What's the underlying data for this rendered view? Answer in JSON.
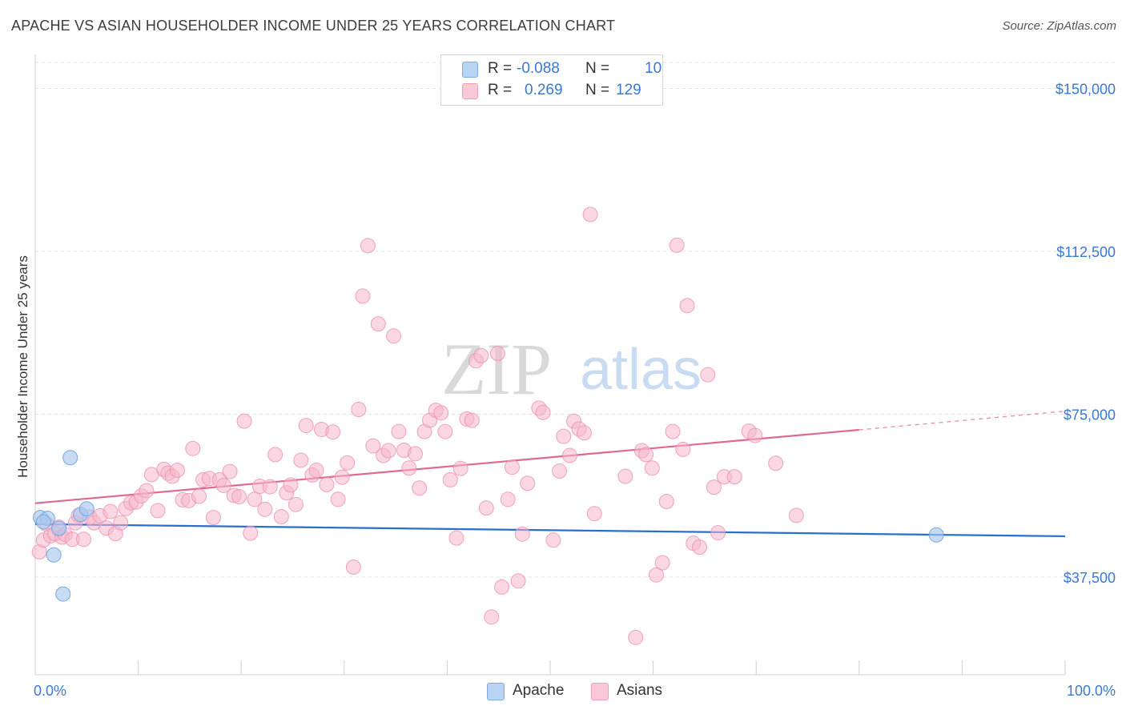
{
  "title": "APACHE VS ASIAN HOUSEHOLDER INCOME UNDER 25 YEARS CORRELATION CHART",
  "source": "Source: ZipAtlas.com",
  "watermark": {
    "zip": "ZIP",
    "atlas": "atlas"
  },
  "legend": {
    "r_label": "R =",
    "n_label": "N =",
    "rows": [
      {
        "name": "Apache",
        "r": "-0.088",
        "n": "10"
      },
      {
        "name": "Asians",
        "r": "0.269",
        "n": "129"
      }
    ]
  },
  "colors": {
    "apache_fill": "#a9c8f0",
    "apache_stroke": "#6f9fdc",
    "apache_line": "#2a6fd0",
    "asian_fill": "#f6b6cb",
    "asian_stroke": "#ec8fb0",
    "asian_line": "#e0698f",
    "tick_text": "#3a78d1",
    "grid": "#e3e3e3"
  },
  "chart_data": {
    "type": "scatter",
    "title": "APACHE VS ASIAN HOUSEHOLDER INCOME UNDER 25 YEARS CORRELATION CHART",
    "xlabel": "",
    "ylabel": "Householder Income Under 25 years",
    "xlim": [
      0,
      100
    ],
    "ylim": [
      15000,
      156000
    ],
    "x_tick_labels": [
      "0.0%",
      "100.0%"
    ],
    "y_ticks": [
      37500,
      75000,
      112500,
      150000
    ],
    "y_tick_labels": [
      "$37,500",
      "$75,000",
      "$112,500",
      "$150,000"
    ],
    "grid": true,
    "legend_position": "top-center",
    "series": [
      {
        "name": "Apache",
        "points": [
          [
            0.5,
            51200
          ],
          [
            1.2,
            51000
          ],
          [
            0.8,
            50200
          ],
          [
            1.8,
            42600
          ],
          [
            2.3,
            48700
          ],
          [
            2.7,
            33600
          ],
          [
            3.4,
            65000
          ],
          [
            4.4,
            51900
          ],
          [
            5.0,
            53200
          ],
          [
            87.5,
            47200
          ]
        ],
        "trend": {
          "x0": 0,
          "y0": 49700,
          "x1": 100,
          "y1": 46900
        }
      },
      {
        "name": "Asians",
        "points": [
          [
            0.4,
            43300
          ],
          [
            0.8,
            46000
          ],
          [
            1.1,
            49700
          ],
          [
            1.5,
            47000
          ],
          [
            1.9,
            47500
          ],
          [
            2.3,
            49000
          ],
          [
            2.6,
            46700
          ],
          [
            2.9,
            47300
          ],
          [
            3.6,
            46200
          ],
          [
            3.9,
            50000
          ],
          [
            4.2,
            51700
          ],
          [
            4.7,
            46200
          ],
          [
            5.3,
            51300
          ],
          [
            5.7,
            50000
          ],
          [
            6.3,
            51600
          ],
          [
            6.9,
            48800
          ],
          [
            7.3,
            52600
          ],
          [
            7.8,
            47500
          ],
          [
            8.3,
            50000
          ],
          [
            8.8,
            53300
          ],
          [
            9.3,
            54600
          ],
          [
            9.8,
            54800
          ],
          [
            10.3,
            56200
          ],
          [
            10.8,
            57400
          ],
          [
            11.3,
            61100
          ],
          [
            11.9,
            52800
          ],
          [
            12.5,
            62300
          ],
          [
            12.9,
            61400
          ],
          [
            13.3,
            60700
          ],
          [
            13.8,
            62100
          ],
          [
            14.3,
            55300
          ],
          [
            14.9,
            55100
          ],
          [
            15.3,
            67100
          ],
          [
            15.9,
            56100
          ],
          [
            16.3,
            59900
          ],
          [
            16.9,
            60200
          ],
          [
            17.3,
            51200
          ],
          [
            17.9,
            59900
          ],
          [
            18.3,
            58600
          ],
          [
            18.9,
            61800
          ],
          [
            19.3,
            56300
          ],
          [
            19.8,
            56000
          ],
          [
            20.3,
            73400
          ],
          [
            20.9,
            47600
          ],
          [
            21.3,
            55400
          ],
          [
            21.8,
            58400
          ],
          [
            22.3,
            53100
          ],
          [
            22.8,
            58300
          ],
          [
            23.3,
            65700
          ],
          [
            23.9,
            51400
          ],
          [
            24.4,
            56900
          ],
          [
            24.8,
            58700
          ],
          [
            25.3,
            54200
          ],
          [
            25.8,
            64400
          ],
          [
            26.3,
            72400
          ],
          [
            26.9,
            61000
          ],
          [
            27.3,
            62100
          ],
          [
            27.8,
            71500
          ],
          [
            28.3,
            58800
          ],
          [
            28.9,
            70900
          ],
          [
            29.4,
            55400
          ],
          [
            29.8,
            60500
          ],
          [
            30.3,
            63800
          ],
          [
            30.9,
            39800
          ],
          [
            31.4,
            76100
          ],
          [
            31.8,
            102200
          ],
          [
            32.3,
            113800
          ],
          [
            32.8,
            67700
          ],
          [
            33.3,
            95800
          ],
          [
            33.8,
            65500
          ],
          [
            34.3,
            66600
          ],
          [
            34.8,
            93000
          ],
          [
            35.3,
            71000
          ],
          [
            35.8,
            66700
          ],
          [
            36.3,
            62600
          ],
          [
            36.9,
            65900
          ],
          [
            37.3,
            58000
          ],
          [
            37.8,
            71000
          ],
          [
            38.3,
            73600
          ],
          [
            38.9,
            75900
          ],
          [
            39.4,
            75300
          ],
          [
            39.8,
            71000
          ],
          [
            40.3,
            59900
          ],
          [
            40.9,
            46500
          ],
          [
            41.3,
            62500
          ],
          [
            41.9,
            73900
          ],
          [
            42.4,
            73600
          ],
          [
            42.8,
            87300
          ],
          [
            43.3,
            88500
          ],
          [
            43.8,
            53400
          ],
          [
            44.3,
            28300
          ],
          [
            44.9,
            89000
          ],
          [
            45.3,
            35200
          ],
          [
            45.9,
            55400
          ],
          [
            46.3,
            62800
          ],
          [
            46.9,
            36600
          ],
          [
            47.3,
            47400
          ],
          [
            47.8,
            59100
          ],
          [
            48.9,
            76400
          ],
          [
            49.3,
            75400
          ],
          [
            50.3,
            46000
          ],
          [
            50.9,
            61900
          ],
          [
            51.3,
            69900
          ],
          [
            51.9,
            65500
          ],
          [
            52.3,
            73400
          ],
          [
            52.8,
            71600
          ],
          [
            53.3,
            70700
          ],
          [
            53.9,
            121000
          ],
          [
            54.3,
            52100
          ],
          [
            57.3,
            60700
          ],
          [
            58.3,
            23600
          ],
          [
            58.9,
            66600
          ],
          [
            59.3,
            65700
          ],
          [
            59.9,
            62600
          ],
          [
            60.3,
            38000
          ],
          [
            60.9,
            40800
          ],
          [
            61.3,
            54900
          ],
          [
            61.9,
            71000
          ],
          [
            62.3,
            113900
          ],
          [
            62.9,
            66900
          ],
          [
            63.3,
            100000
          ],
          [
            63.9,
            45300
          ],
          [
            64.5,
            44400
          ],
          [
            65.3,
            84100
          ],
          [
            65.9,
            58200
          ],
          [
            66.3,
            47700
          ],
          [
            66.9,
            60600
          ],
          [
            67.9,
            60600
          ],
          [
            69.3,
            71100
          ],
          [
            69.9,
            70100
          ],
          [
            71.9,
            63700
          ],
          [
            73.9,
            51700
          ]
        ],
        "trend": {
          "x0": 0,
          "y0": 54500,
          "x1": 80,
          "y1": 71400,
          "dashed_to_x": 100,
          "dashed_to_y": 75700
        }
      }
    ]
  }
}
